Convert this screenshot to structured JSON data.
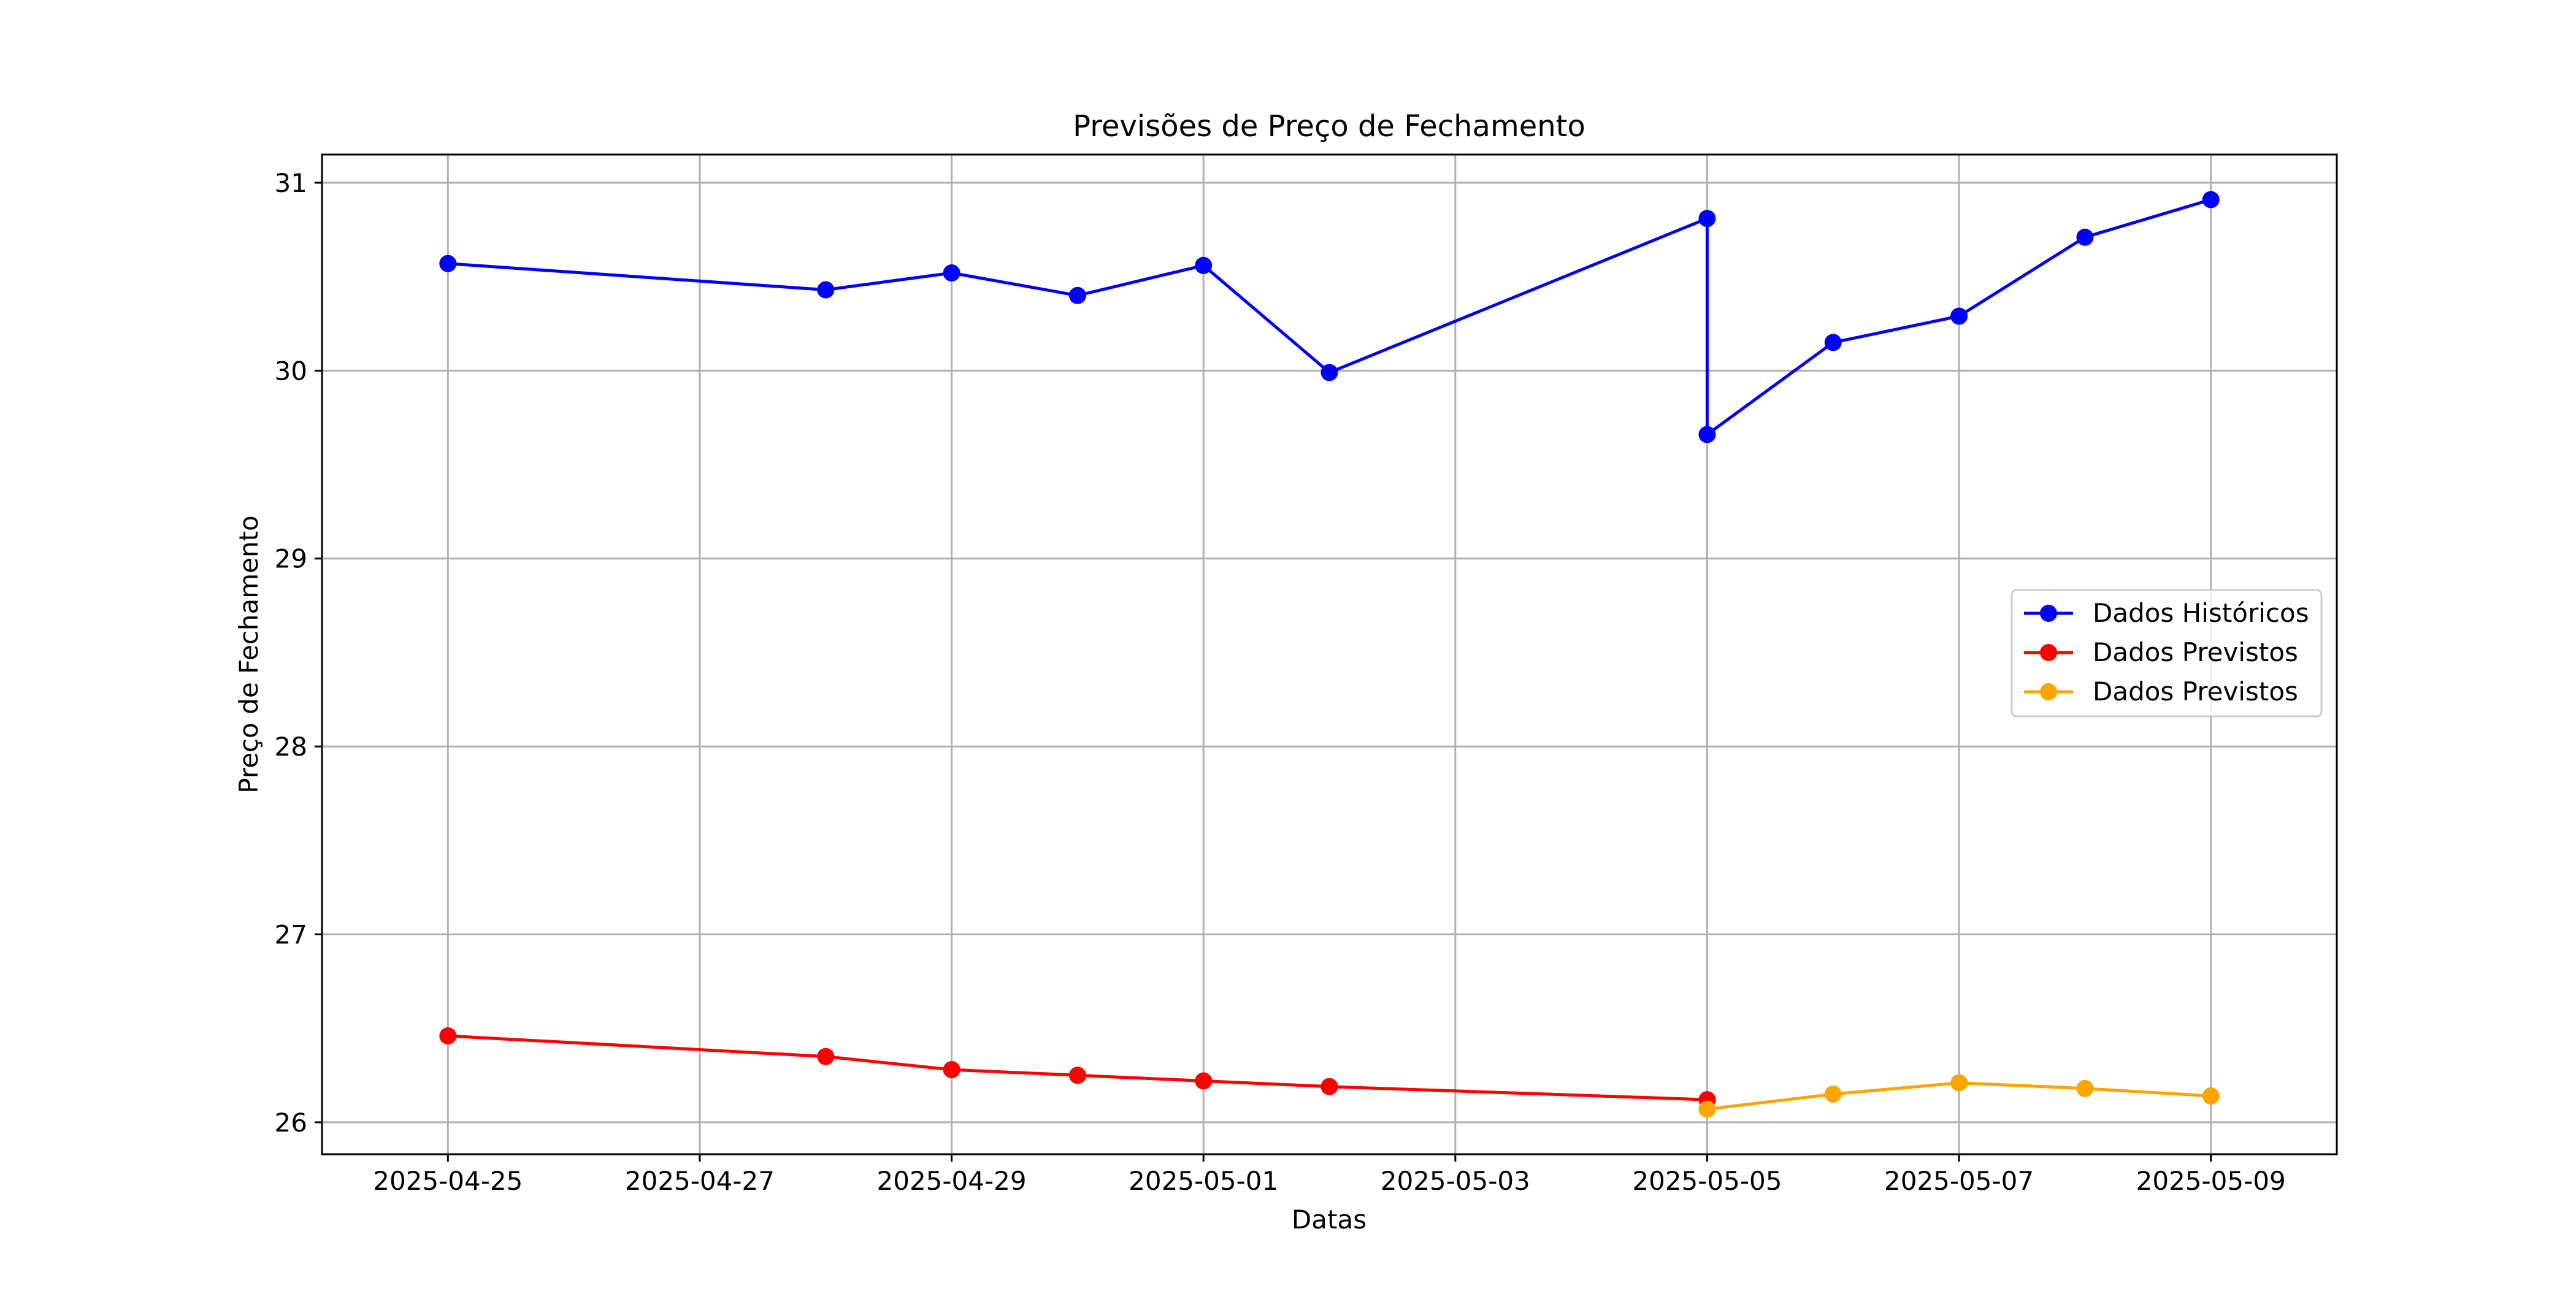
{
  "chart_data": {
    "type": "line",
    "title": "Previsões de Preço de Fechamento",
    "xlabel": "Datas",
    "ylabel": "Preço de Fechamento",
    "x_ticks": [
      "2025-04-25",
      "2025-04-27",
      "2025-04-29",
      "2025-05-01",
      "2025-05-03",
      "2025-05-05",
      "2025-05-07",
      "2025-05-09"
    ],
    "y_ticks": [
      26,
      27,
      28,
      29,
      30,
      31
    ],
    "xlim": [
      "2025-04-24",
      "2025-05-10"
    ],
    "ylim": [
      25.83,
      31.15
    ],
    "grid": true,
    "legend_position": "center-right",
    "series": [
      {
        "name": "Dados Históricos",
        "color": "#0000ff",
        "points": [
          {
            "x": "2025-04-25",
            "y": 30.57
          },
          {
            "x": "2025-04-28",
            "y": 30.43
          },
          {
            "x": "2025-04-29",
            "y": 30.52
          },
          {
            "x": "2025-04-30",
            "y": 30.4
          },
          {
            "x": "2025-05-01",
            "y": 30.56
          },
          {
            "x": "2025-05-02",
            "y": 29.99
          },
          {
            "x": "2025-05-05",
            "y": 30.81
          },
          {
            "x": "2025-05-05",
            "y": 29.66
          },
          {
            "x": "2025-05-06",
            "y": 30.15
          },
          {
            "x": "2025-05-07",
            "y": 30.29
          },
          {
            "x": "2025-05-08",
            "y": 30.71
          },
          {
            "x": "2025-05-09",
            "y": 30.91
          }
        ]
      },
      {
        "name": "Dados Previstos",
        "color": "#ff0000",
        "points": [
          {
            "x": "2025-04-25",
            "y": 26.46
          },
          {
            "x": "2025-04-28",
            "y": 26.35
          },
          {
            "x": "2025-04-29",
            "y": 26.28
          },
          {
            "x": "2025-04-30",
            "y": 26.25
          },
          {
            "x": "2025-05-01",
            "y": 26.22
          },
          {
            "x": "2025-05-02",
            "y": 26.19
          },
          {
            "x": "2025-05-05",
            "y": 26.12
          }
        ]
      },
      {
        "name": "Dados Previstos",
        "color": "#ffa500",
        "points": [
          {
            "x": "2025-05-05",
            "y": 26.07
          },
          {
            "x": "2025-05-06",
            "y": 26.15
          },
          {
            "x": "2025-05-07",
            "y": 26.21
          },
          {
            "x": "2025-05-08",
            "y": 26.18
          },
          {
            "x": "2025-05-09",
            "y": 26.14
          }
        ]
      }
    ]
  }
}
